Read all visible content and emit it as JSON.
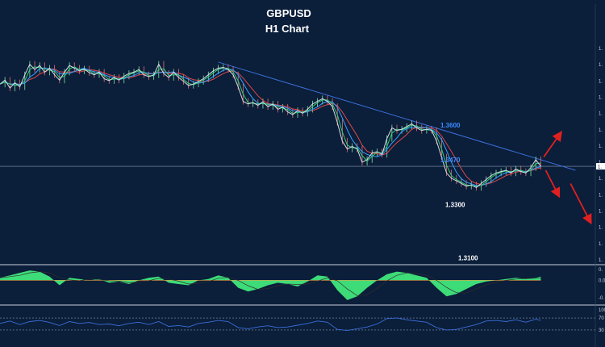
{
  "chart_data": {
    "type": "line",
    "title": "GBPUSD",
    "subtitle": "H1 Chart",
    "colors": {
      "background": "#0b1e3a",
      "price": "#d8dde6",
      "ma_fast": "#2fd07a",
      "ma_mid": "#3aa0ff",
      "ma_slow": "#e04848",
      "trendline": "#3a6fd8",
      "arrow": "#e02020",
      "macd_fill": "#3ddc78",
      "rsi_line": "#3a6fd8",
      "level_blue": "#3a8dff",
      "level_white": "#ffffff"
    },
    "price_series": [
      [
        0,
        1.3755
      ],
      [
        5,
        1.377
      ],
      [
        10,
        1.374
      ],
      [
        15,
        1.376
      ],
      [
        20,
        1.3745
      ],
      [
        25,
        1.379
      ],
      [
        30,
        1.383
      ],
      [
        35,
        1.381
      ],
      [
        40,
        1.3825
      ],
      [
        45,
        1.38
      ],
      [
        50,
        1.3815
      ],
      [
        55,
        1.379
      ],
      [
        60,
        1.377
      ],
      [
        65,
        1.38
      ],
      [
        70,
        1.3825
      ],
      [
        75,
        1.3815
      ],
      [
        80,
        1.3805
      ],
      [
        85,
        1.3812
      ],
      [
        90,
        1.3798
      ],
      [
        95,
        1.379
      ],
      [
        100,
        1.38
      ],
      [
        105,
        1.3775
      ],
      [
        110,
        1.3768
      ],
      [
        115,
        1.378
      ],
      [
        120,
        1.377
      ],
      [
        125,
        1.3785
      ],
      [
        130,
        1.3795
      ],
      [
        135,
        1.38
      ],
      [
        140,
        1.381
      ],
      [
        145,
        1.379
      ],
      [
        150,
        1.3783
      ],
      [
        155,
        1.379
      ],
      [
        160,
        1.383
      ],
      [
        165,
        1.3795
      ],
      [
        170,
        1.378
      ],
      [
        175,
        1.38
      ],
      [
        180,
        1.378
      ],
      [
        185,
        1.3765
      ],
      [
        190,
        1.375
      ],
      [
        195,
        1.3755
      ],
      [
        200,
        1.3765
      ],
      [
        205,
        1.3775
      ],
      [
        210,
        1.379
      ],
      [
        215,
        1.3805
      ],
      [
        220,
        1.3815
      ],
      [
        225,
        1.3818
      ],
      [
        230,
        1.381
      ],
      [
        235,
        1.379
      ],
      [
        240,
        1.3745
      ],
      [
        245,
        1.369
      ],
      [
        250,
        1.368
      ],
      [
        255,
        1.3685
      ],
      [
        260,
        1.3675
      ],
      [
        265,
        1.3688
      ],
      [
        270,
        1.367
      ],
      [
        275,
        1.368
      ],
      [
        280,
        1.366
      ],
      [
        285,
        1.3668
      ],
      [
        290,
        1.365
      ],
      [
        295,
        1.364
      ],
      [
        300,
        1.3655
      ],
      [
        305,
        1.3645
      ],
      [
        310,
        1.366
      ],
      [
        315,
        1.368
      ],
      [
        320,
        1.369
      ],
      [
        325,
        1.37
      ],
      [
        330,
        1.369
      ],
      [
        335,
        1.367
      ],
      [
        340,
        1.361
      ],
      [
        345,
        1.354
      ],
      [
        350,
        1.351
      ],
      [
        355,
        1.352
      ],
      [
        360,
        1.351
      ],
      [
        365,
        1.346
      ],
      [
        370,
        1.347
      ],
      [
        375,
        1.3495
      ],
      [
        380,
        1.35
      ],
      [
        385,
        1.349
      ],
      [
        390,
        1.355
      ],
      [
        395,
        1.359
      ],
      [
        400,
        1.358
      ],
      [
        405,
        1.3585
      ],
      [
        410,
        1.3595
      ],
      [
        415,
        1.3605
      ],
      [
        420,
        1.359
      ],
      [
        425,
        1.358
      ],
      [
        430,
        1.3585
      ],
      [
        435,
        1.358
      ],
      [
        440,
        1.354
      ],
      [
        445,
        1.348
      ],
      [
        450,
        1.342
      ],
      [
        455,
        1.34
      ],
      [
        460,
        1.339
      ],
      [
        465,
        1.338
      ],
      [
        470,
        1.337
      ],
      [
        475,
        1.3375
      ],
      [
        480,
        1.3365
      ],
      [
        485,
        1.338
      ],
      [
        490,
        1.3395
      ],
      [
        495,
        1.341
      ],
      [
        500,
        1.342
      ],
      [
        505,
        1.3425
      ],
      [
        510,
        1.343
      ],
      [
        515,
        1.342
      ],
      [
        520,
        1.3435
      ],
      [
        525,
        1.3425
      ],
      [
        530,
        1.342
      ],
      [
        535,
        1.344
      ],
      [
        540,
        1.347
      ],
      [
        545,
        1.3445
      ]
    ],
    "trendline": [
      [
        220,
        1.3838
      ],
      [
        580,
        1.343
      ]
    ],
    "current_price": 1.3445,
    "levels": [
      {
        "label": "1.3600",
        "value": 1.36,
        "color": "#3a8dff"
      },
      {
        "label": "1.3470",
        "value": 1.347,
        "color": "#3a8dff"
      },
      {
        "label": "1.3300",
        "value": 1.33,
        "color": "#ffffff"
      },
      {
        "label": "1.3100",
        "value": 1.31,
        "color": "#ffffff"
      }
    ],
    "arrows": [
      {
        "from": [
          548,
          1.348
        ],
        "to": [
          565,
          1.357
        ]
      },
      {
        "from": [
          550,
          1.343
        ],
        "to": [
          563,
          1.3335
        ]
      },
      {
        "from": [
          575,
          1.338
        ],
        "to": [
          595,
          1.3235
        ]
      }
    ],
    "macd": [
      [
        0,
        2
      ],
      [
        10,
        4
      ],
      [
        20,
        6
      ],
      [
        30,
        8
      ],
      [
        40,
        7
      ],
      [
        50,
        3
      ],
      [
        60,
        -4
      ],
      [
        70,
        2
      ],
      [
        80,
        1
      ],
      [
        90,
        0
      ],
      [
        100,
        1
      ],
      [
        110,
        -2
      ],
      [
        120,
        -1
      ],
      [
        130,
        -3
      ],
      [
        140,
        0
      ],
      [
        150,
        2
      ],
      [
        160,
        3
      ],
      [
        170,
        -2
      ],
      [
        180,
        -3
      ],
      [
        190,
        -4
      ],
      [
        200,
        0
      ],
      [
        210,
        1
      ],
      [
        220,
        4
      ],
      [
        230,
        2
      ],
      [
        240,
        -6
      ],
      [
        250,
        -9
      ],
      [
        260,
        -7
      ],
      [
        270,
        -4
      ],
      [
        280,
        -2
      ],
      [
        290,
        -3
      ],
      [
        300,
        -5
      ],
      [
        310,
        -1
      ],
      [
        320,
        4
      ],
      [
        330,
        3
      ],
      [
        340,
        -8
      ],
      [
        350,
        -16
      ],
      [
        360,
        -13
      ],
      [
        370,
        -6
      ],
      [
        380,
        0
      ],
      [
        390,
        5
      ],
      [
        400,
        7
      ],
      [
        410,
        6
      ],
      [
        420,
        4
      ],
      [
        430,
        2
      ],
      [
        440,
        -6
      ],
      [
        450,
        -13
      ],
      [
        460,
        -11
      ],
      [
        470,
        -7
      ],
      [
        480,
        -3
      ],
      [
        490,
        -1
      ],
      [
        500,
        0
      ],
      [
        510,
        1
      ],
      [
        520,
        2
      ],
      [
        530,
        1
      ],
      [
        540,
        2
      ],
      [
        545,
        3
      ]
    ],
    "macd_ylim": [
      -18,
      10
    ],
    "rsi": [
      [
        0,
        52
      ],
      [
        10,
        60
      ],
      [
        20,
        48
      ],
      [
        30,
        58
      ],
      [
        40,
        62
      ],
      [
        50,
        55
      ],
      [
        60,
        45
      ],
      [
        70,
        58
      ],
      [
        80,
        52
      ],
      [
        90,
        55
      ],
      [
        100,
        48
      ],
      [
        110,
        50
      ],
      [
        120,
        44
      ],
      [
        130,
        52
      ],
      [
        140,
        56
      ],
      [
        150,
        48
      ],
      [
        160,
        58
      ],
      [
        170,
        42
      ],
      [
        180,
        45
      ],
      [
        190,
        40
      ],
      [
        200,
        52
      ],
      [
        210,
        56
      ],
      [
        220,
        62
      ],
      [
        230,
        58
      ],
      [
        240,
        38
      ],
      [
        250,
        34
      ],
      [
        260,
        40
      ],
      [
        270,
        44
      ],
      [
        280,
        38
      ],
      [
        290,
        40
      ],
      [
        300,
        46
      ],
      [
        310,
        52
      ],
      [
        320,
        60
      ],
      [
        330,
        56
      ],
      [
        340,
        32
      ],
      [
        350,
        28
      ],
      [
        360,
        34
      ],
      [
        370,
        40
      ],
      [
        380,
        50
      ],
      [
        390,
        68
      ],
      [
        400,
        70
      ],
      [
        410,
        64
      ],
      [
        420,
        60
      ],
      [
        430,
        56
      ],
      [
        440,
        38
      ],
      [
        450,
        30
      ],
      [
        460,
        32
      ],
      [
        470,
        40
      ],
      [
        480,
        48
      ],
      [
        490,
        60
      ],
      [
        500,
        62
      ],
      [
        510,
        58
      ],
      [
        520,
        64
      ],
      [
        530,
        56
      ],
      [
        540,
        66
      ],
      [
        545,
        62
      ]
    ],
    "rsi_ylim": [
      0,
      100
    ],
    "rsi_levels": [
      30,
      70
    ],
    "rsi_axis_labels": [
      "100",
      "70",
      "30"
    ],
    "xlim": [
      0,
      600
    ],
    "ylim": [
      1.308,
      1.392
    ],
    "y_tick_labels": [
      "1.",
      "1.",
      "1.",
      "1.",
      "1.",
      "1.",
      "1.",
      "1.",
      "1.",
      "1.",
      "1.",
      "1.",
      "1.",
      "1."
    ],
    "macd_axis_labels": [
      "0.",
      "0.0",
      "-0."
    ],
    "current_price_label": "1.",
    "grid": false
  }
}
